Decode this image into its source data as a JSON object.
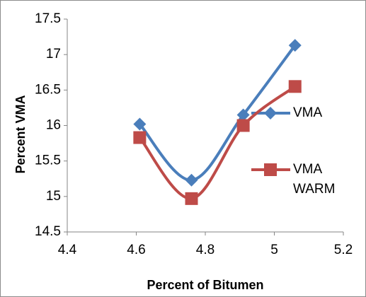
{
  "chart_data": {
    "type": "scatter",
    "x_label": "Percent of Bitumen",
    "y_label": "Percent VMA",
    "series": [
      {
        "name": "VMA",
        "color": "#4a7ebb",
        "marker": "diamond",
        "x": [
          4.61,
          4.76,
          4.91,
          5.06
        ],
        "values": [
          16.02,
          15.23,
          16.15,
          17.13
        ]
      },
      {
        "name": "VMA WARM",
        "color": "#be4b48",
        "marker": "square",
        "x": [
          4.61,
          4.76,
          4.91,
          5.06
        ],
        "values": [
          15.83,
          14.97,
          16.0,
          16.55
        ]
      }
    ],
    "xlim": [
      4.4,
      5.2
    ],
    "xticks": [
      4.4,
      4.6,
      4.8,
      5,
      5.2
    ],
    "ylim": [
      14.5,
      17.5
    ],
    "yticks": [
      14.5,
      15,
      15.5,
      16,
      16.5,
      17,
      17.5
    ],
    "smooth": true,
    "grid": false,
    "legend": "right"
  }
}
